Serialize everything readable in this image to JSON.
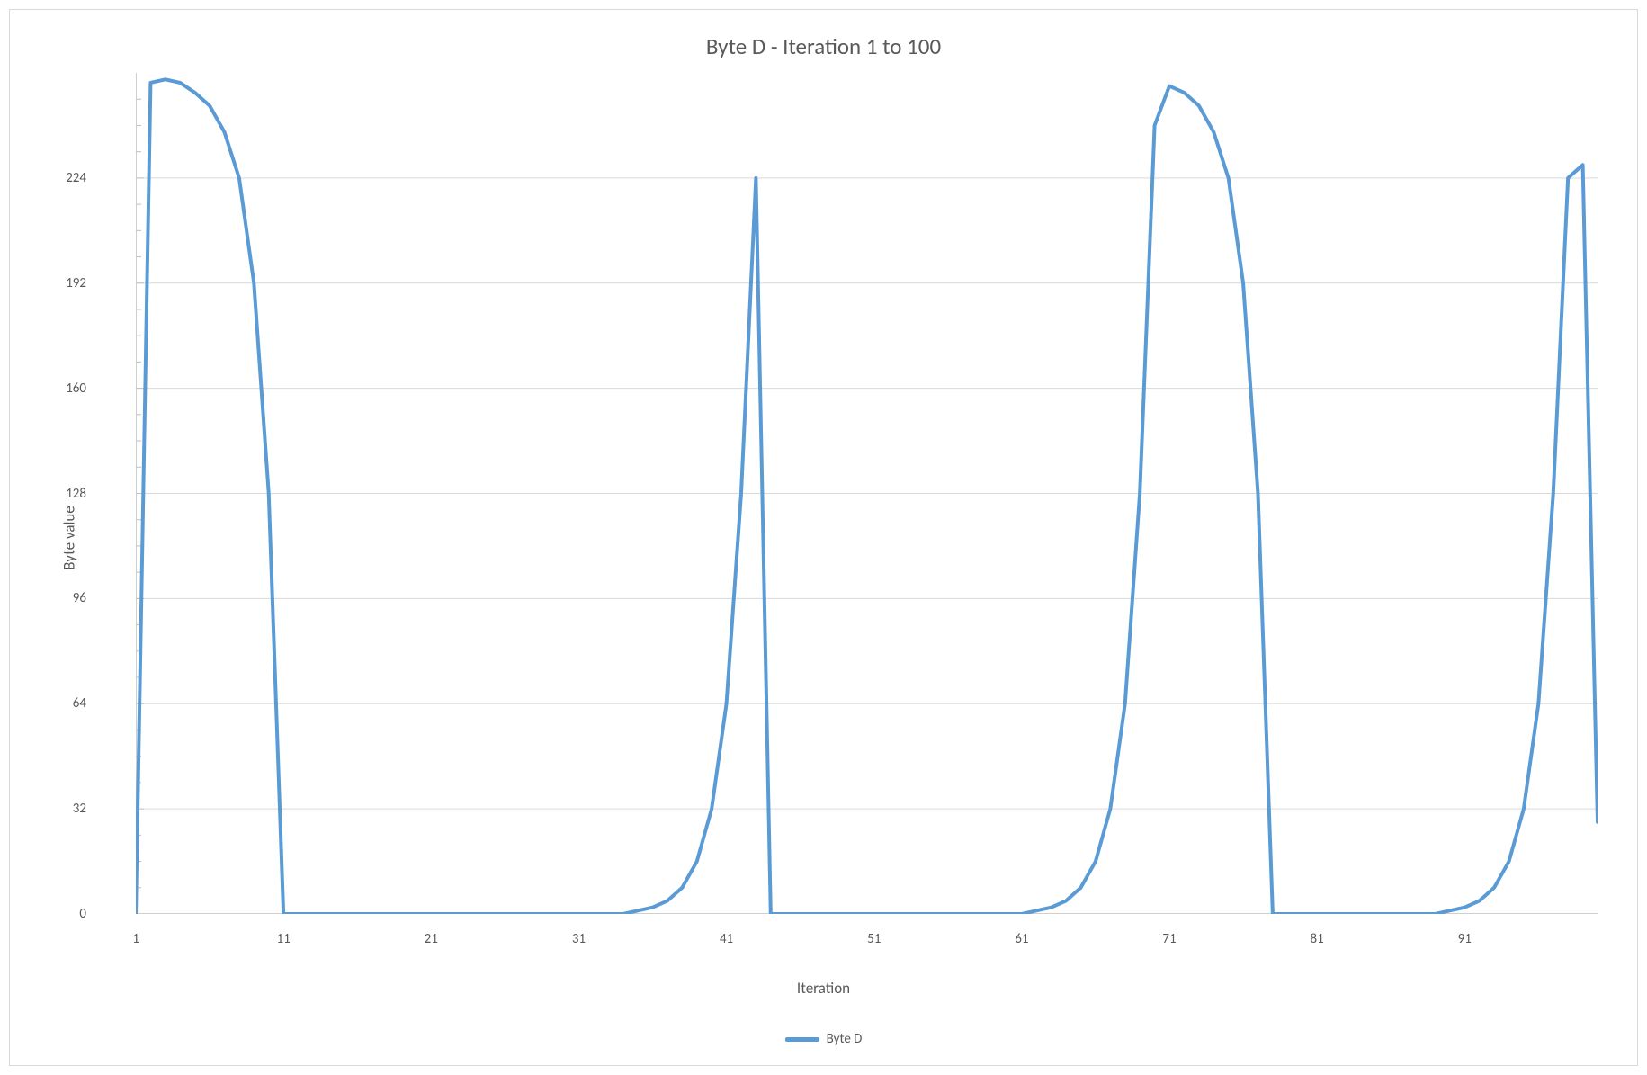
{
  "chart": {
    "type": "line",
    "title": "Byte D - Iteration 1 to 100",
    "title_fontsize": 25,
    "title_color": "#595959",
    "xlabel": "Iteration",
    "ylabel": "Byte value",
    "label_fontsize": 17,
    "label_color": "#595959",
    "tick_fontsize": 15,
    "tick_color": "#595959",
    "background_color": "#ffffff",
    "border_color": "#d9d9d9",
    "grid_color": "#d9d9d9",
    "axis_color": "#bfbfbf",
    "x_values": [
      1,
      2,
      3,
      4,
      5,
      6,
      7,
      8,
      9,
      10,
      11,
      12,
      13,
      14,
      15,
      16,
      17,
      18,
      19,
      20,
      21,
      22,
      23,
      24,
      25,
      26,
      27,
      28,
      29,
      30,
      31,
      32,
      33,
      34,
      35,
      36,
      37,
      38,
      39,
      40,
      41,
      42,
      43,
      44,
      45,
      46,
      47,
      48,
      49,
      50,
      51,
      52,
      53,
      54,
      55,
      56,
      57,
      58,
      59,
      60,
      61,
      62,
      63,
      64,
      65,
      66,
      67,
      68,
      69,
      70,
      71,
      72,
      73,
      74,
      75,
      76,
      77,
      78,
      79,
      80,
      81,
      82,
      83,
      84,
      85,
      86,
      87,
      88,
      89,
      90,
      91,
      92,
      93,
      94,
      95,
      96,
      97,
      98,
      99,
      100
    ],
    "y_values": [
      0,
      253,
      254,
      253,
      250,
      246,
      238,
      224,
      192,
      128,
      0,
      0,
      0,
      0,
      0,
      0,
      0,
      0,
      0,
      0,
      0,
      0,
      0,
      0,
      0,
      0,
      0,
      0,
      0,
      0,
      0,
      0,
      0,
      0,
      1,
      2,
      4,
      8,
      16,
      32,
      64,
      128,
      224,
      0,
      0,
      0,
      0,
      0,
      0,
      0,
      0,
      0,
      0,
      0,
      0,
      0,
      0,
      0,
      0,
      0,
      0,
      1,
      2,
      4,
      8,
      16,
      32,
      64,
      128,
      240,
      252,
      250,
      246,
      238,
      224,
      192,
      128,
      0,
      0,
      0,
      0,
      0,
      0,
      0,
      0,
      0,
      0,
      0,
      0,
      1,
      2,
      4,
      8,
      16,
      32,
      64,
      128,
      224,
      228,
      28
    ],
    "series_name": "Byte D",
    "series_color": "#5b9bd5",
    "line_width": 4,
    "xlim": [
      1,
      100
    ],
    "ylim": [
      0,
      256
    ],
    "x_ticks": [
      1,
      11,
      21,
      31,
      41,
      51,
      61,
      71,
      81,
      91
    ],
    "y_ticks": [
      0,
      32,
      64,
      96,
      128,
      160,
      192,
      224
    ],
    "y_minor_ticks": 4,
    "legend_label": "Byte D",
    "legend_fontsize": 15
  }
}
